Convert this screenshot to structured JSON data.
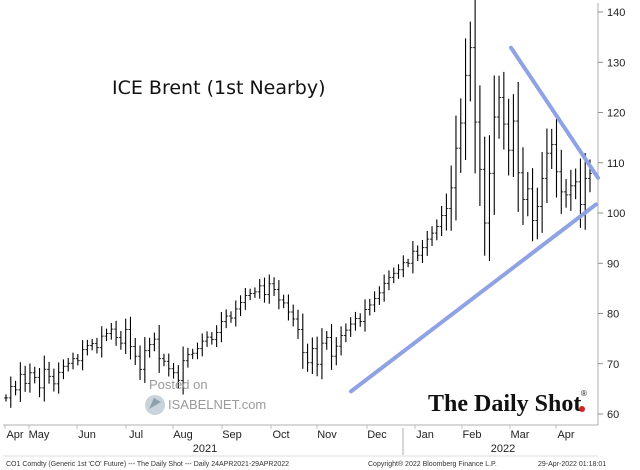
{
  "chart_data": {
    "type": "line",
    "title": "ICE Brent (1st Nearby)",
    "ylim": [
      58,
      142
    ],
    "y_ticks": [
      60,
      70,
      80,
      90,
      100,
      110,
      120,
      130,
      140
    ],
    "x_tick_labels": [
      "Apr",
      "May",
      "Jun",
      "Jul",
      "Aug",
      "Sep",
      "Oct",
      "Nov",
      "Dec",
      "Jan",
      "Feb",
      "Mar",
      "Apr"
    ],
    "year_labels": [
      "2021",
      "2022"
    ],
    "series": [
      {
        "values": [
          63.2,
          65.5,
          64.8,
          67.9,
          66.1,
          68.2,
          67.3,
          65.2,
          68.9,
          67.5,
          66.0,
          68.3,
          69.5,
          70.1,
          71.0,
          70.6,
          72.8,
          73.6,
          74.0,
          73.2,
          75.5,
          76.0,
          76.9,
          75.2,
          74.1,
          76.8,
          73.4,
          71.5,
          68.9,
          72.6,
          73.8,
          74.9,
          71.0,
          70.5,
          69.0,
          68.2,
          66.7,
          70.6,
          71.8,
          72.1,
          73.0,
          74.5,
          75.3,
          74.8,
          76.2,
          78.4,
          79.5,
          79.1,
          80.9,
          82.2,
          83.6,
          84.0,
          84.3,
          85.5,
          83.8,
          85.9,
          84.8,
          82.7,
          82.1,
          80.3,
          78.9,
          76.8,
          72.2,
          70.2,
          73.0,
          69.9,
          74.1,
          75.2,
          71.5,
          73.5,
          75.6,
          76.7,
          77.9,
          79.0,
          78.4,
          80.8,
          81.7,
          83.0,
          84.1,
          86.0,
          87.2,
          88.0,
          88.7,
          90.1,
          90.0,
          92.4,
          91.6,
          93.1,
          94.8,
          96.0,
          97.3,
          99.5,
          100.9,
          105.0,
          112.9,
          117.9,
          127.4,
          132.9,
          118.1,
          108.7,
          98.0,
          107.9,
          119.1,
          123.0,
          117.7,
          112.5,
          118.3,
          108.0,
          102.7,
          104.8,
          98.5,
          101.3,
          106.9,
          111.9,
          113.6,
          108.2,
          104.2,
          103.6,
          105.4,
          106.2,
          101.7,
          106.9,
          107.9
        ]
      }
    ],
    "trendlines": [
      {
        "name": "upper",
        "points": [
          [
            511,
            132.9
          ],
          [
            598,
            107.0
          ]
        ]
      },
      {
        "name": "lower",
        "points": [
          [
            351,
            64.5
          ],
          [
            596,
            101.7
          ]
        ]
      }
    ],
    "accent_color": "#8fa2e4"
  },
  "footer": {
    "left": "CO1 Comdty (Generic 1st 'CO' Future) --- The Daily Shot --- Daily 24APR2021-29APR2022",
    "middle": "Copyright® 2022 Bloomberg Finance L.P.",
    "right": "29-Apr-2022 01:18:01"
  },
  "watermark": {
    "posted_on": "Posted on",
    "site": "ISABELNET.com"
  },
  "brand": {
    "name": "The Daily Shot",
    "mark": "®"
  }
}
